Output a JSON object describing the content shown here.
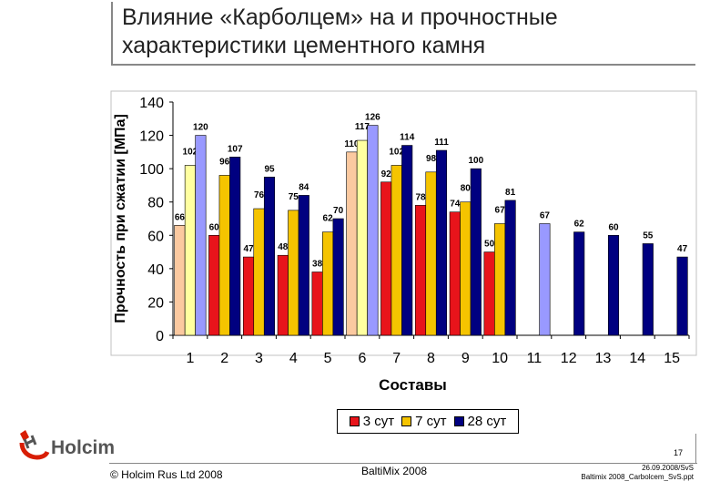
{
  "title": "Влияние «Карболцем» на и прочностные\nхарактеристики цементного камня",
  "chart_data": {
    "type": "bar",
    "xlabel": "Составы",
    "ylabel": "Прочность при сжатии [МПа]",
    "ylim": [
      0,
      140
    ],
    "yticks": [
      0,
      20,
      40,
      60,
      80,
      100,
      120,
      140
    ],
    "categories": [
      "1",
      "2",
      "3",
      "4",
      "5",
      "6",
      "7",
      "8",
      "9",
      "10",
      "11",
      "12",
      "13",
      "14",
      "15"
    ],
    "series": [
      {
        "name": "3 сут",
        "values": [
          66,
          60,
          47,
          48,
          38,
          110,
          92,
          78,
          74,
          50,
          null,
          null,
          null,
          null,
          null
        ]
      },
      {
        "name": "7 сут",
        "values": [
          102,
          96,
          76,
          75,
          62,
          117,
          102,
          98,
          80,
          67,
          null,
          null,
          null,
          null,
          null
        ]
      },
      {
        "name": "28 сут",
        "values": [
          120,
          107,
          95,
          84,
          70,
          126,
          114,
          111,
          100,
          81,
          67,
          62,
          60,
          55,
          47
        ]
      }
    ],
    "colors": {
      "3 сут": "#e8141b",
      "7 сут": "#f5c400",
      "28 сут": "#000080",
      "3 сут light": "#fbc9a0",
      "7 сут light": "#ffffa0",
      "28 сут light": "#9999ff"
    },
    "grid": false,
    "legend_position": "bottom"
  },
  "logo": {
    "text": "Holcim"
  },
  "footer": {
    "left": "© Holcim Rus Ltd 2008",
    "middle": "BaltiMix 2008",
    "right": "26.09.2008/SvS\nBaltimix 2008_Carbolcem_SvS.ppt",
    "page": "17"
  }
}
